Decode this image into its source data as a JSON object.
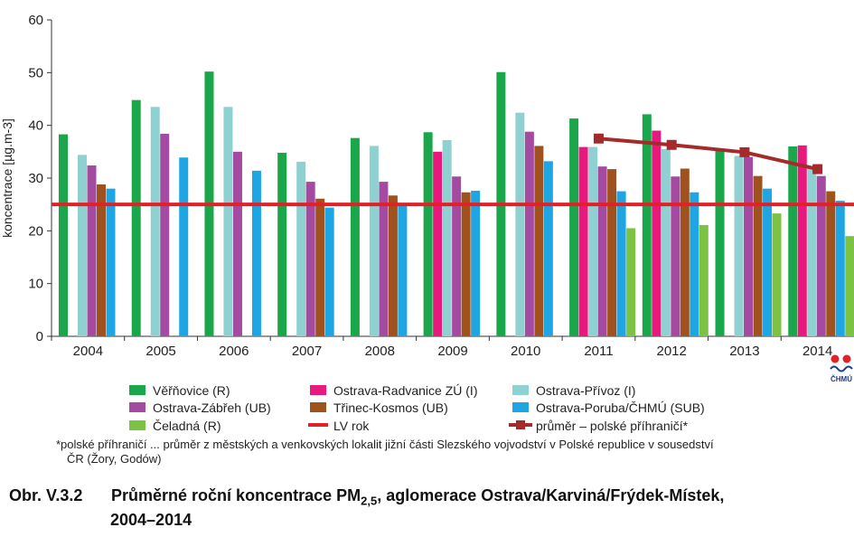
{
  "chart_data": {
    "type": "bar",
    "ylabel": "koncentrace [µg.m-3]",
    "ylim": [
      0,
      60
    ],
    "yticks": [
      0,
      10,
      20,
      30,
      40,
      50,
      60
    ],
    "grid": false,
    "legend_position": "bottom",
    "categories": [
      "2004",
      "2005",
      "2006",
      "2007",
      "2008",
      "2009",
      "2010",
      "2011",
      "2012",
      "2013",
      "2014"
    ],
    "series": [
      {
        "name": "Věřňovice (R)",
        "color": "#1aa64a",
        "values": [
          38.3,
          44.8,
          50.2,
          34.8,
          37.6,
          38.7,
          50.1,
          41.3,
          42.1,
          35.2,
          36.0
        ]
      },
      {
        "name": "Ostrava-Radvanice ZÚ (I)",
        "color": "#e8197d",
        "values": [
          null,
          null,
          null,
          null,
          null,
          35.0,
          null,
          35.9,
          39.0,
          null,
          36.2
        ]
      },
      {
        "name": "Ostrava-Přívoz (I)",
        "color": "#8fd0d0",
        "values": [
          34.4,
          43.5,
          43.5,
          33.1,
          36.1,
          37.2,
          42.4,
          35.9,
          35.5,
          34.2,
          31.9
        ]
      },
      {
        "name": "Ostrava-Zábřeh (UB)",
        "color": "#a44aa0",
        "values": [
          32.4,
          38.4,
          35.0,
          29.3,
          29.3,
          30.3,
          38.8,
          32.2,
          30.3,
          34.0,
          30.4
        ]
      },
      {
        "name": "Třinec-Kosmos (UB)",
        "color": "#a0521e",
        "values": [
          28.8,
          null,
          null,
          26.1,
          26.7,
          27.3,
          36.1,
          31.7,
          31.8,
          30.4,
          27.5
        ]
      },
      {
        "name": "Ostrava-Poruba/ČHMÚ (SUB)",
        "color": "#1ea6e4",
        "values": [
          28.0,
          33.9,
          31.4,
          24.4,
          25.1,
          27.6,
          33.2,
          27.5,
          27.3,
          28.0,
          25.7
        ]
      },
      {
        "name": "Čeladná (R)",
        "color": "#7cc243",
        "values": [
          null,
          null,
          null,
          null,
          null,
          null,
          null,
          20.5,
          21.1,
          23.3,
          19.0
        ]
      }
    ],
    "lv_line": {
      "name": "LV rok",
      "color": "#e32026",
      "value": 25
    },
    "avg_line": {
      "name": "průměr – polské příhraničí*",
      "color": "#a52a2a",
      "x": [
        "2011",
        "2012",
        "2013",
        "2014"
      ],
      "values": [
        37.5,
        36.3,
        34.9,
        31.7
      ]
    }
  },
  "logo": {
    "text": "ČHMÚ"
  },
  "footnote": {
    "line1": "*polské příhraničí ... průměr z městských a venkovských lokalit jižní části Slezského vojvodství v Polské republice v sousedství",
    "line2": "ČR (Žory, Godów)"
  },
  "caption": {
    "prefix": "Obr. V.3.2",
    "text_before_sub": "Průměrné roční koncentrace PM",
    "sub": "2,5",
    "text_after_sub": ", aglomerace Ostrava/Karviná/Frýdek-Místek,",
    "line2": "2004–2014"
  }
}
